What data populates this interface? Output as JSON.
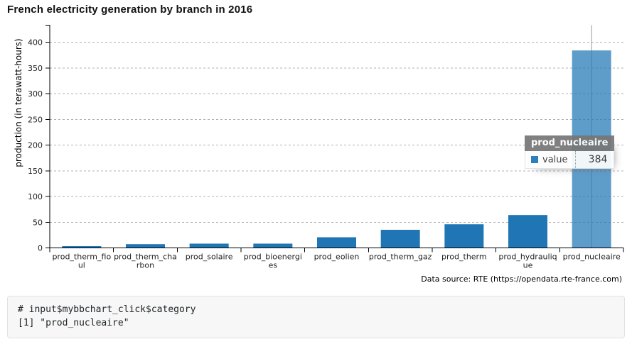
{
  "title": "French electricity generation by branch in 2016",
  "chart_data": {
    "type": "bar",
    "title": "French electricity generation by branch in 2016",
    "categories": [
      "prod_therm_fioul",
      "prod_therm_charbon",
      "prod_solaire",
      "prod_bioenergies",
      "prod_eolien",
      "prod_therm_gaz",
      "prod_therm",
      "prod_hydraulique",
      "prod_nucleaire"
    ],
    "series": [
      {
        "name": "value",
        "values": [
          3.4,
          7.3,
          8.3,
          8.3,
          20.7,
          35.2,
          45.9,
          63.9,
          384
        ]
      }
    ],
    "xlabel": "",
    "ylabel": "production (in terawatt-hours)",
    "ylim": [
      0,
      430
    ],
    "yticks": [
      0,
      50,
      100,
      150,
      200,
      250,
      300,
      350,
      400
    ],
    "grid": {
      "y": true,
      "style": "dashed"
    },
    "legend": "none",
    "bar_color": "#2076b5",
    "hovered_index": 8,
    "hovered_category": "prod_nucleaire"
  },
  "tooltip": {
    "title": "prod_nucleaire",
    "rows": [
      {
        "label": "value",
        "value": "384",
        "marker_color": "#2076b5"
      }
    ]
  },
  "footnote": "Data source: RTE (https://opendata.rte-france.com)",
  "console_output": {
    "lines": [
      "# input$mybbchart_click$category",
      "[1] \"prod_nucleaire\""
    ]
  }
}
